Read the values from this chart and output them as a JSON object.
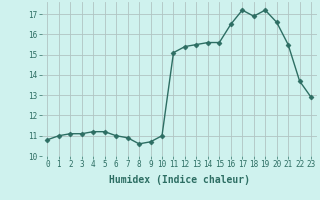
{
  "x": [
    0,
    1,
    2,
    3,
    4,
    5,
    6,
    7,
    8,
    9,
    10,
    11,
    12,
    13,
    14,
    15,
    16,
    17,
    18,
    19,
    20,
    21,
    22,
    23
  ],
  "y": [
    10.8,
    11.0,
    11.1,
    11.1,
    11.2,
    11.2,
    11.0,
    10.9,
    10.6,
    10.7,
    11.0,
    15.1,
    15.4,
    15.5,
    15.6,
    15.6,
    16.5,
    17.2,
    16.9,
    17.2,
    16.6,
    15.5,
    13.7,
    12.9
  ],
  "xlabel": "Humidex (Indice chaleur)",
  "ylabel": "",
  "xlim": [
    -0.5,
    23.5
  ],
  "ylim": [
    10,
    17.6
  ],
  "yticks": [
    10,
    11,
    12,
    13,
    14,
    15,
    16,
    17
  ],
  "xticks": [
    0,
    1,
    2,
    3,
    4,
    5,
    6,
    7,
    8,
    9,
    10,
    11,
    12,
    13,
    14,
    15,
    16,
    17,
    18,
    19,
    20,
    21,
    22,
    23
  ],
  "line_color": "#2d6e63",
  "bg_color": "#cff2ee",
  "grid_color": "#b0c4c2",
  "tick_color": "#2d6e63",
  "label_color": "#2d6e63",
  "marker": "D",
  "markersize": 2.5,
  "linewidth": 1.0,
  "tick_fontsize": 5.5,
  "xlabel_fontsize": 7.0
}
